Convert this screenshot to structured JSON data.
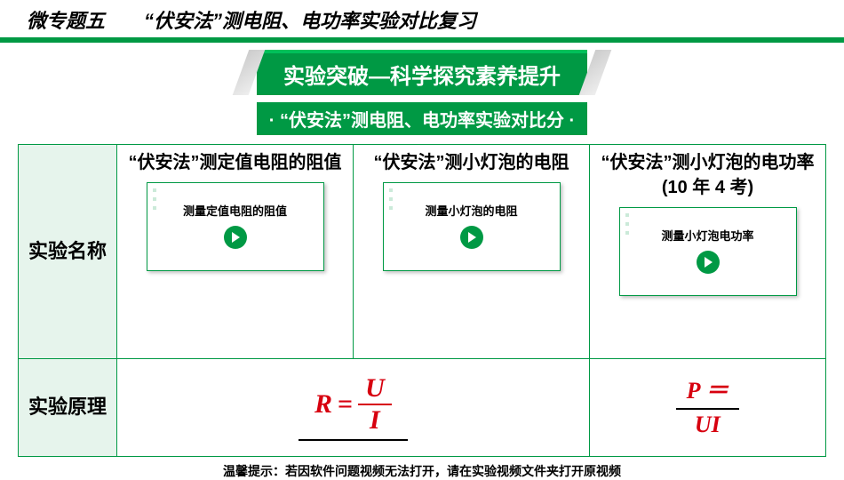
{
  "top_title": "微专题五　　“伏安法”测电阻、电功率实验对比复习",
  "banner1": "实验突破—科学探究素养提升",
  "banner2": "· “伏安法”测电阻、电功率实验对比分 ·",
  "side": {
    "row1": "实验名称",
    "row2": "实验原理"
  },
  "cols": [
    {
      "title": "“伏安法”测定值电阻的阻值",
      "video_label": "测量定值电阻的阻值"
    },
    {
      "title": "“伏安法”测小灯泡的电阻",
      "video_label": "测量小灯泡的电阻"
    },
    {
      "title": "“伏安法”测小灯泡的电功率 (10 年 4 考)",
      "video_label": "测量小灯泡电功率"
    }
  ],
  "formula1": {
    "lhs": "R",
    "eq": "=",
    "num": "U",
    "den": "I"
  },
  "formula2": {
    "line1": "P ＝",
    "line2": "UI"
  },
  "footnote": "温馨提示：若因软件问题视频无法打开，请在实验视频文件夹打开原视频",
  "colors": {
    "brand": "#009944",
    "accent": "#d7000f",
    "side_bg": "#e6f4ec"
  }
}
